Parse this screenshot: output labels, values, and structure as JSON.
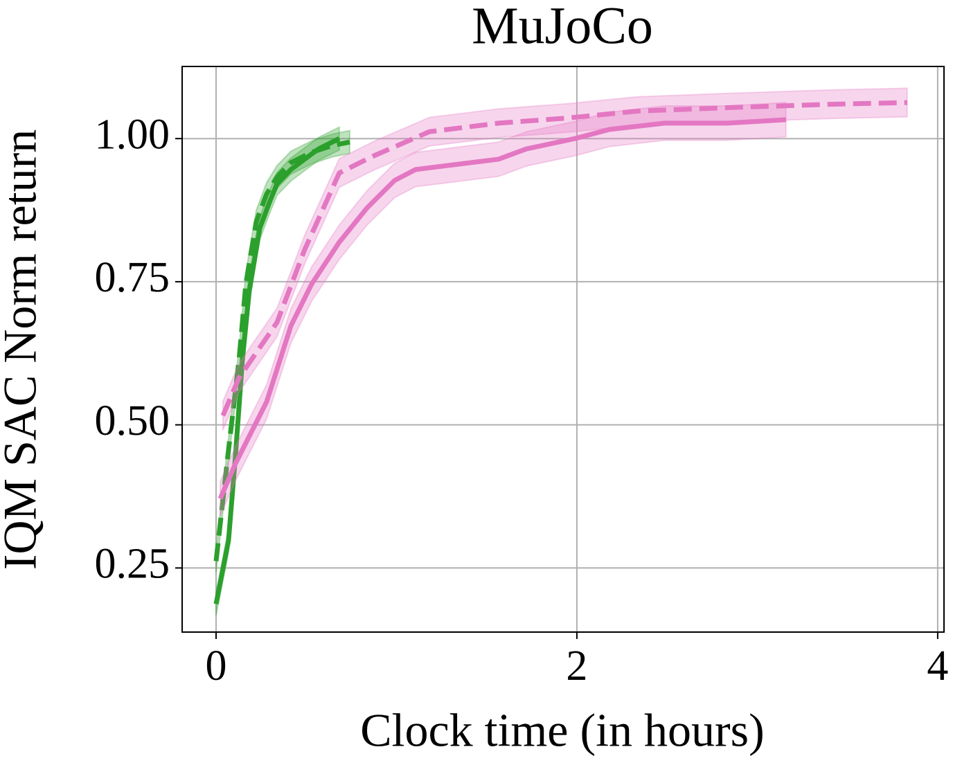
{
  "chart_data": {
    "type": "line",
    "title": "MuJoCo",
    "x_label": "Clock time (in hours)",
    "y_label": "IQM SAC Norm return",
    "xlim": [
      -0.188,
      4.035
    ],
    "ylim": [
      0.138,
      1.126
    ],
    "xticks": [
      0,
      2,
      4
    ],
    "yticks": [
      0.25,
      {
        "value": 0.5,
        "label": "0.50"
      },
      0.75,
      {
        "value": 1,
        "label": "1.00"
      }
    ],
    "grid": true,
    "series": [
      {
        "color": "#2ca02c",
        "linestyle": "solid",
        "spread": 0.02,
        "x": [
          0,
          0.069,
          0.107,
          0.146,
          0.184,
          0.242,
          0.299,
          0.338,
          0.415,
          0.491,
          0.568,
          0.683
        ],
        "values": [
          0.187,
          0.298,
          0.444,
          0.613,
          0.734,
          0.843,
          0.891,
          0.921,
          0.946,
          0.964,
          0.982,
          1.0
        ]
      },
      {
        "color": "#2ca02c",
        "linestyle": "dashed",
        "spread": 0.02,
        "x": [
          0,
          0.069,
          0.127,
          0.165,
          0.223,
          0.28,
          0.338,
          0.415,
          0.53,
          0.645,
          0.741
        ],
        "values": [
          0.262,
          0.456,
          0.613,
          0.746,
          0.855,
          0.903,
          0.933,
          0.958,
          0.976,
          0.988,
          0.994
        ]
      },
      {
        "color": "#e377c2",
        "linestyle": "solid",
        "spread": 0.03,
        "x": [
          0.023,
          0.107,
          0.28,
          0.415,
          0.53,
          0.683,
          0.837,
          0.99,
          1.106,
          1.336,
          1.566,
          1.72,
          1.989,
          2.18,
          2.487,
          2.833,
          3.159
        ],
        "values": [
          0.371,
          0.432,
          0.54,
          0.673,
          0.746,
          0.819,
          0.879,
          0.927,
          0.946,
          0.955,
          0.964,
          0.982,
          1.0,
          1.016,
          1.027,
          1.027,
          1.033
        ]
      },
      {
        "color": "#e377c2",
        "linestyle": "dashed",
        "spread": 0.025,
        "x": [
          0.038,
          0.127,
          0.338,
          0.491,
          0.683,
          0.875,
          1.182,
          1.566,
          1.95,
          2.334,
          2.833,
          3.409,
          3.831
        ],
        "values": [
          0.516,
          0.582,
          0.679,
          0.806,
          0.94,
          0.97,
          1.012,
          1.027,
          1.036,
          1.048,
          1.054,
          1.06,
          1.063
        ]
      }
    ]
  }
}
